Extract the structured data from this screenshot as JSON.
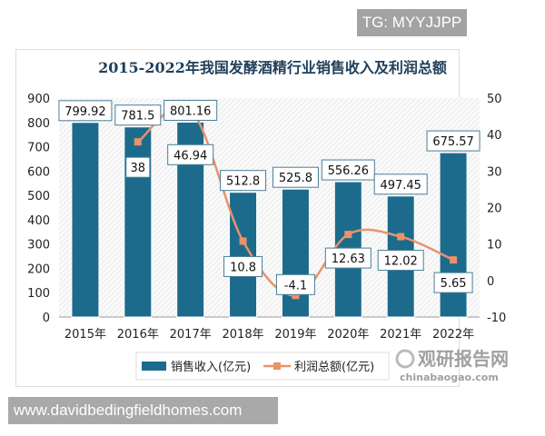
{
  "watermark_top": "TG: MYYJJPP",
  "watermark_bottom": "www.davidbedingfieldhomes.com",
  "logo_text": "观研报告网",
  "logo_url_text": "chinabaogao.com",
  "chart_data": {
    "type": "bar+line",
    "title": "2015-2022年我国发酵酒精行业销售收入及利润总额",
    "categories": [
      "2015年",
      "2016年",
      "2017年",
      "2018年",
      "2019年",
      "2020年",
      "2021年",
      "2022年"
    ],
    "series": [
      {
        "name": "销售收入(亿元)",
        "type": "bar",
        "axis": "left",
        "color": "#1c6b8c",
        "values": [
          799.92,
          781.5,
          801.16,
          512.8,
          525.8,
          556.26,
          497.45,
          675.57
        ],
        "labels": [
          "799.92",
          "781.5",
          "801.16",
          "512.8",
          "525.8",
          "556.26",
          "497.45",
          "675.57"
        ]
      },
      {
        "name": "利润总额(亿元)",
        "type": "line",
        "axis": "right",
        "color": "#e8936a",
        "values": [
          null,
          38,
          46.94,
          10.8,
          -4.1,
          12.63,
          12.02,
          5.65
        ],
        "labels": [
          "",
          "38",
          "46.94",
          "10.8",
          "-4.1",
          "12.63",
          "12.02",
          "5.65"
        ]
      }
    ],
    "y_left": {
      "range": [
        0,
        900
      ],
      "ticks": [
        "0",
        "100",
        "200",
        "300",
        "400",
        "500",
        "600",
        "700",
        "800",
        "900"
      ]
    },
    "y_right": {
      "range": [
        -10,
        50
      ],
      "ticks": [
        "-10",
        "0",
        "10",
        "20",
        "30",
        "40",
        "50"
      ]
    },
    "legend": "bottom",
    "grid": false
  }
}
